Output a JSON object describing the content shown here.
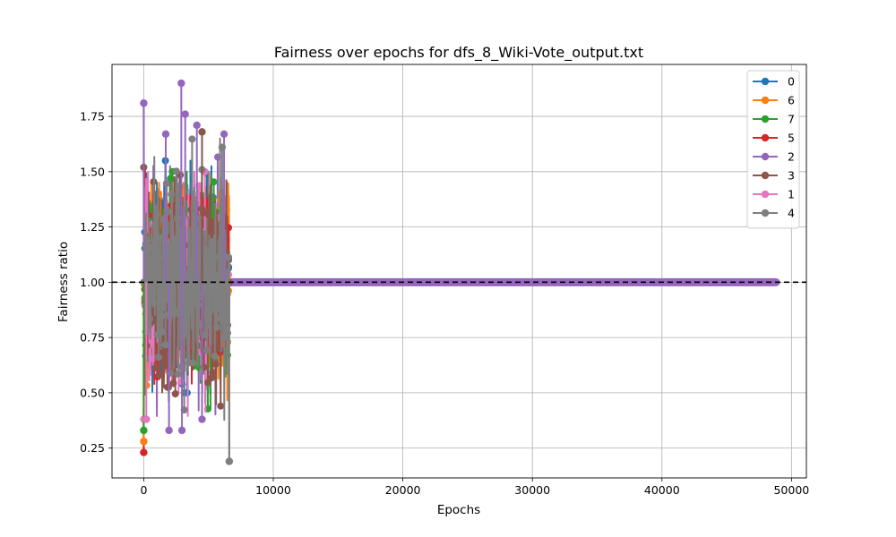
{
  "chart_data": {
    "type": "line",
    "title": "Fairness over epochs for dfs_8_Wiki-Vote_output.txt",
    "xlabel": "Epochs",
    "ylabel": "Fairness ratio",
    "xlim": [
      -2450,
      51150
    ],
    "ylim": [
      0.115,
      1.985
    ],
    "xticks": [
      0,
      10000,
      20000,
      30000,
      40000,
      50000
    ],
    "xtick_labels": [
      "0",
      "10000",
      "20000",
      "30000",
      "40000",
      "50000"
    ],
    "yticks": [
      0.25,
      0.5,
      0.75,
      1.0,
      1.25,
      1.5,
      1.75
    ],
    "ytick_labels": [
      "0.25",
      "0.50",
      "0.75",
      "1.00",
      "1.25",
      "1.50",
      "1.75"
    ],
    "grid": true,
    "legend_position": "top-right",
    "reference_line": {
      "y": 1.0,
      "style": "dashed",
      "color": "#000000"
    },
    "active_range": [
      0,
      6600
    ],
    "tail_series": "2",
    "tail_value": 1.0,
    "tail_end": 48800,
    "series": [
      {
        "name": "0",
        "color": "#1f77b4",
        "min": 0.5,
        "max": 1.55,
        "first": 1.0,
        "last": 1.0
      },
      {
        "name": "6",
        "color": "#ff7f0e",
        "min": 0.28,
        "max": 1.45,
        "first": 0.28,
        "last": 1.0
      },
      {
        "name": "7",
        "color": "#2ca02c",
        "min": 0.33,
        "max": 1.5,
        "first": 0.33,
        "last": 1.0
      },
      {
        "name": "5",
        "color": "#d62728",
        "min": 0.23,
        "max": 1.55,
        "first": 0.23,
        "last": 1.0
      },
      {
        "name": "2",
        "color": "#9467bd",
        "min": 0.33,
        "max": 1.9,
        "first": 1.81,
        "last": 1.0
      },
      {
        "name": "3",
        "color": "#8c564b",
        "min": 0.44,
        "max": 1.68,
        "first": 1.52,
        "last": 1.0
      },
      {
        "name": "1",
        "color": "#e377c2",
        "min": 0.38,
        "max": 1.5,
        "first": 0.38,
        "last": 1.0
      },
      {
        "name": "4",
        "color": "#7f7f7f",
        "min": 0.19,
        "max": 1.65,
        "first": 1.0,
        "last": 0.19
      }
    ],
    "highlight_points": [
      {
        "series": "2",
        "x": 0,
        "y": 1.81
      },
      {
        "series": "2",
        "x": 2900,
        "y": 1.9
      },
      {
        "series": "2",
        "x": 3200,
        "y": 1.76
      },
      {
        "series": "2",
        "x": 4100,
        "y": 1.71
      },
      {
        "series": "3",
        "x": 4500,
        "y": 1.68
      },
      {
        "series": "2",
        "x": 1700,
        "y": 1.67
      },
      {
        "series": "2",
        "x": 6200,
        "y": 1.67
      },
      {
        "series": "4",
        "x": 6050,
        "y": 1.61
      },
      {
        "series": "5",
        "x": 0,
        "y": 0.23
      },
      {
        "series": "6",
        "x": 0,
        "y": 0.28
      },
      {
        "series": "7",
        "x": 0,
        "y": 0.33
      },
      {
        "series": "1",
        "x": 200,
        "y": 0.38
      },
      {
        "series": "2",
        "x": 2950,
        "y": 0.33
      },
      {
        "series": "2",
        "x": 1950,
        "y": 0.33
      },
      {
        "series": "2",
        "x": 4500,
        "y": 0.38
      },
      {
        "series": "4",
        "x": 6600,
        "y": 0.19
      }
    ]
  }
}
